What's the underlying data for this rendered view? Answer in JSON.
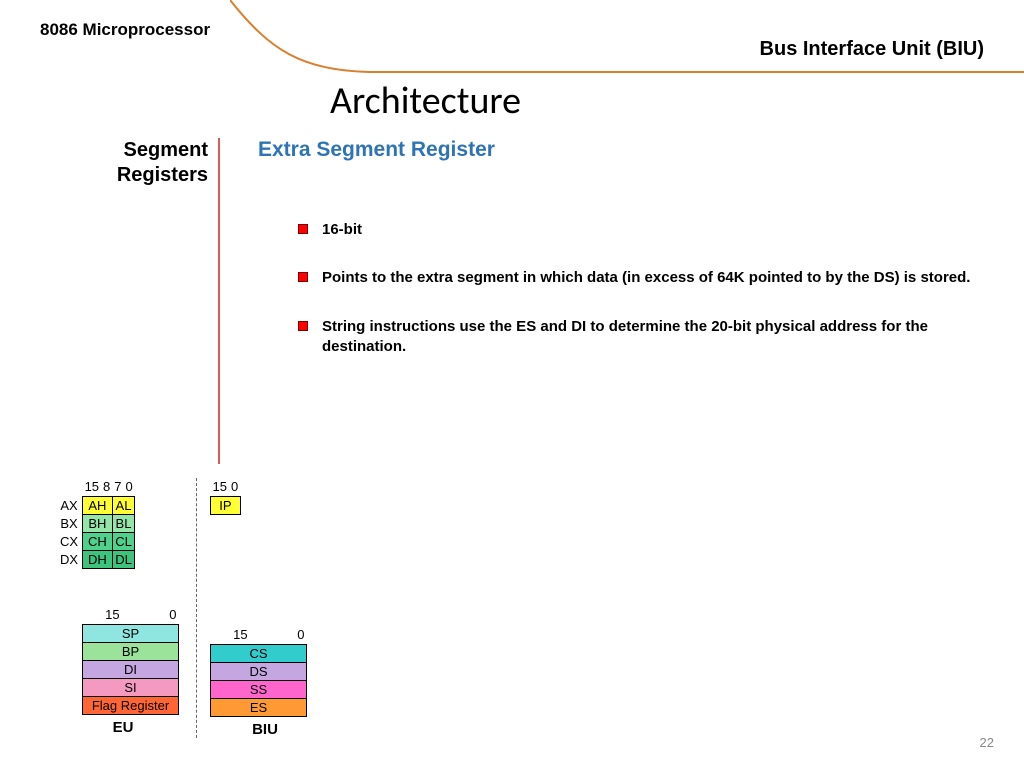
{
  "header": {
    "left": "8086 Microprocessor",
    "right": "Bus Interface Unit (BIU)",
    "swoosh_color": "#d97f2e"
  },
  "title": "Architecture",
  "section_label": "Segment Registers",
  "subtitle": "Extra Segment Register",
  "subtitle_color": "#2e74b5",
  "bullets": [
    "16-bit",
    "Points to the extra segment in which data (in excess of 64K pointed to by the DS) is stored.",
    "String instructions use the ES and DI to determine the 20-bit physical address for the destination."
  ],
  "bullet_marker_color": "#ff0000",
  "diagram": {
    "gp_regs": {
      "bit_hi": "15",
      "bit_mid1": "8",
      "bit_mid2": "7",
      "bit_lo": "0",
      "rows": [
        {
          "name": "AX",
          "hi": "AH",
          "lo": "AL",
          "color": "#ffff33"
        },
        {
          "name": "BX",
          "hi": "BH",
          "lo": "BL",
          "color": "#93e6a7"
        },
        {
          "name": "CX",
          "hi": "CH",
          "lo": "CL",
          "color": "#4fd18b"
        },
        {
          "name": "DX",
          "hi": "DH",
          "lo": "DL",
          "color": "#3cc47c"
        }
      ]
    },
    "ip_reg": {
      "bit_hi": "15",
      "bit_lo": "0",
      "label": "IP",
      "color": "#ffff33"
    },
    "ptr_regs": {
      "bit_hi": "15",
      "bit_lo": "0",
      "rows": [
        {
          "label": "SP",
          "color": "#8fe6e0"
        },
        {
          "label": "BP",
          "color": "#9be29b"
        },
        {
          "label": "DI",
          "color": "#c4a6e0"
        },
        {
          "label": "SI",
          "color": "#f49ac1"
        },
        {
          "label": "Flag Register",
          "color": "#ff6633"
        }
      ],
      "footer": "EU"
    },
    "seg_regs": {
      "bit_hi": "15",
      "bit_lo": "0",
      "rows": [
        {
          "label": "CS",
          "color": "#33cccc"
        },
        {
          "label": "DS",
          "color": "#c4a6e0"
        },
        {
          "label": "SS",
          "color": "#ff66cc"
        },
        {
          "label": "ES",
          "color": "#ff9933"
        }
      ],
      "footer": "BIU"
    }
  },
  "page_number": "22"
}
